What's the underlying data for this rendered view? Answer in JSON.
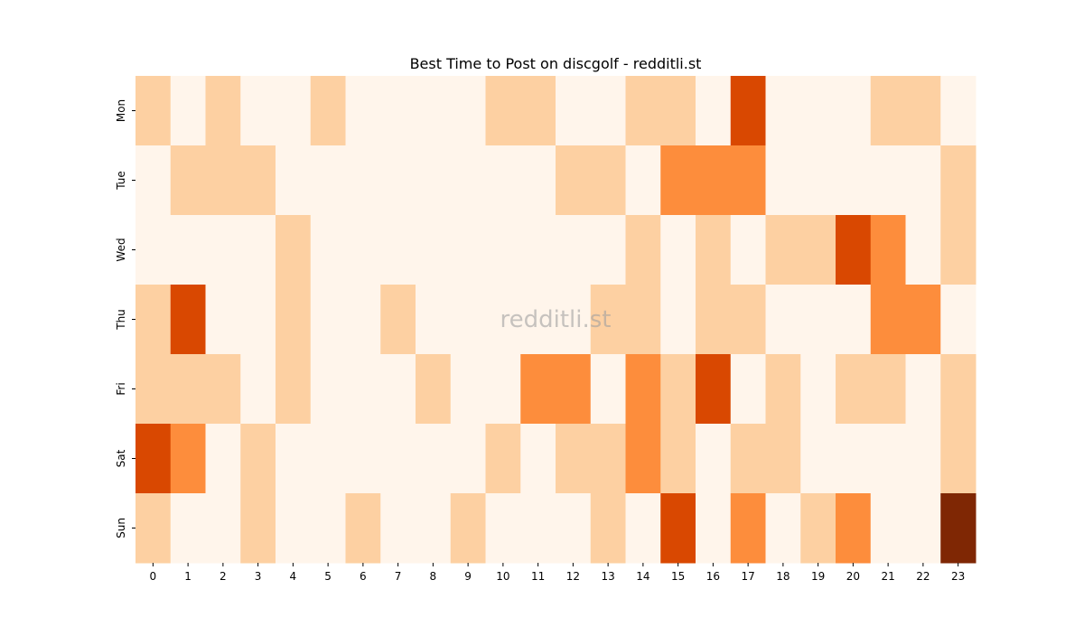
{
  "chart_data": {
    "type": "heatmap",
    "title": "Best Time to Post on discgolf - redditli.st",
    "watermark": "redditli.st",
    "x_categories": [
      "0",
      "1",
      "2",
      "3",
      "4",
      "5",
      "6",
      "7",
      "8",
      "9",
      "10",
      "11",
      "12",
      "13",
      "14",
      "15",
      "16",
      "17",
      "18",
      "19",
      "20",
      "21",
      "22",
      "23"
    ],
    "y_categories": [
      "Mon",
      "Tue",
      "Wed",
      "Thu",
      "Fri",
      "Sat",
      "Sun"
    ],
    "colormap": "Oranges",
    "colors": [
      "#fff5eb",
      "#fdd0a2",
      "#fd8d3c",
      "#d94801",
      "#7f2704"
    ],
    "values": [
      [
        1,
        0,
        1,
        0,
        0,
        1,
        0,
        0,
        0,
        0,
        1,
        1,
        0,
        0,
        1,
        1,
        0,
        3,
        0,
        0,
        0,
        1,
        1,
        0
      ],
      [
        0,
        1,
        1,
        1,
        0,
        0,
        0,
        0,
        0,
        0,
        0,
        0,
        1,
        1,
        0,
        2,
        2,
        2,
        0,
        0,
        0,
        0,
        0,
        1
      ],
      [
        0,
        0,
        0,
        0,
        1,
        0,
        0,
        0,
        0,
        0,
        0,
        0,
        0,
        0,
        1,
        0,
        1,
        0,
        1,
        1,
        3,
        2,
        0,
        1
      ],
      [
        1,
        3,
        0,
        0,
        1,
        0,
        0,
        1,
        0,
        0,
        0,
        0,
        0,
        1,
        1,
        0,
        1,
        1,
        0,
        0,
        0,
        2,
        2,
        0
      ],
      [
        1,
        1,
        1,
        0,
        1,
        0,
        0,
        0,
        1,
        0,
        0,
        2,
        2,
        0,
        2,
        1,
        3,
        0,
        1,
        0,
        1,
        1,
        0,
        1
      ],
      [
        3,
        2,
        0,
        1,
        0,
        0,
        0,
        0,
        0,
        0,
        1,
        0,
        1,
        1,
        2,
        1,
        0,
        1,
        1,
        0,
        0,
        0,
        0,
        1
      ],
      [
        1,
        0,
        0,
        1,
        0,
        0,
        1,
        0,
        0,
        1,
        0,
        0,
        0,
        1,
        0,
        3,
        0,
        2,
        0,
        1,
        2,
        0,
        0,
        4
      ]
    ],
    "grid": false,
    "legend": "none"
  }
}
